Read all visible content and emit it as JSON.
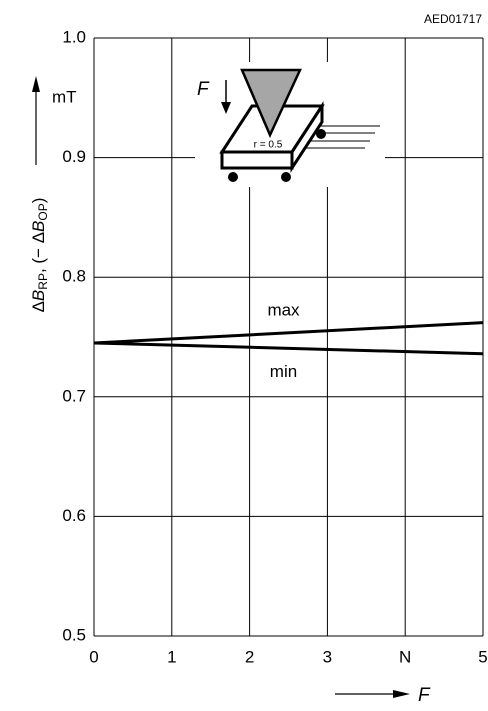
{
  "chart_data": {
    "type": "line",
    "figure_id": "AED01717",
    "y_unit": "mT",
    "ylabel_parts": [
      "Δ",
      "B",
      "RP",
      ", (− Δ",
      "B",
      "OP",
      ")"
    ],
    "xlabel": "F",
    "x": [
      0,
      5
    ],
    "series": [
      {
        "name": "max",
        "color": "#000000",
        "values": [
          0.745,
          0.762
        ]
      },
      {
        "name": "min",
        "color": "#000000",
        "values": [
          0.745,
          0.736
        ]
      }
    ],
    "xlim": [
      0,
      5
    ],
    "xticks": [
      0,
      1,
      2,
      3,
      {
        "value": 4,
        "label": "N"
      },
      5
    ],
    "ylim": [
      0.5,
      1.0
    ],
    "yticks": [
      0.5,
      0.6,
      0.7,
      0.8,
      0.9,
      {
        "value": 1.0,
        "label": "1.0"
      }
    ],
    "grid": true,
    "inset": {
      "force_label": "F",
      "radius_label": "r = 0.5"
    }
  }
}
